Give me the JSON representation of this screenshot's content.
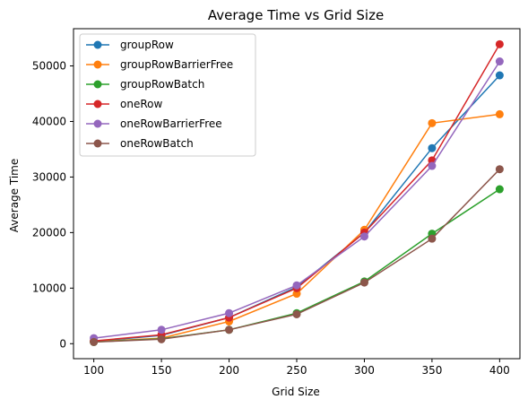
{
  "chart_data": {
    "type": "line",
    "title": "Average Time vs Grid Size",
    "xlabel": "Grid Size",
    "ylabel": "Average Time",
    "x": [
      100,
      150,
      200,
      250,
      300,
      350,
      400
    ],
    "xlim": [
      85,
      415
    ],
    "ylim": [
      -2700,
      56700
    ],
    "xticks": [
      100,
      150,
      200,
      250,
      300,
      350,
      400
    ],
    "yticks": [
      0,
      10000,
      20000,
      30000,
      40000,
      50000
    ],
    "grid": false,
    "legend_position": "top-left",
    "series": [
      {
        "name": "groupRow",
        "color": "#1f77b4",
        "values": [
          400,
          1500,
          4700,
          10200,
          20000,
          35200,
          48300
        ]
      },
      {
        "name": "groupRowBarrierFree",
        "color": "#ff7f0e",
        "values": [
          350,
          1000,
          4000,
          9000,
          20500,
          39700,
          41300
        ]
      },
      {
        "name": "groupRowBatch",
        "color": "#2ca02c",
        "values": [
          300,
          900,
          2500,
          5500,
          11200,
          19800,
          27800
        ]
      },
      {
        "name": "oneRow",
        "color": "#d62728",
        "values": [
          500,
          1600,
          4700,
          10000,
          20000,
          33000,
          53900
        ]
      },
      {
        "name": "oneRowBarrierFree",
        "color": "#9467bd",
        "values": [
          1000,
          2500,
          5500,
          10500,
          19300,
          32000,
          50800
        ]
      },
      {
        "name": "oneRowBatch",
        "color": "#8c564b",
        "values": [
          300,
          800,
          2500,
          5300,
          11000,
          18900,
          31400
        ]
      }
    ]
  }
}
